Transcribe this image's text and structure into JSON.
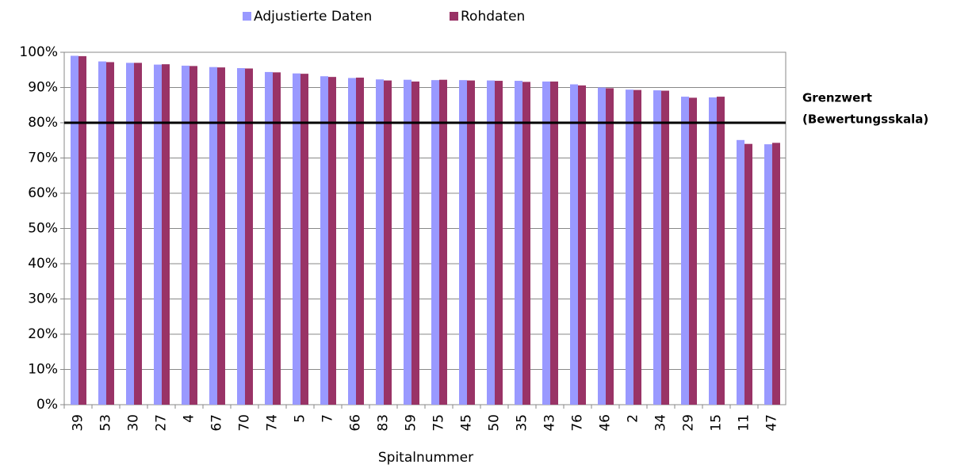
{
  "chart_data": {
    "type": "bar",
    "x_label": "Spitalnummer",
    "categories": [
      "39",
      "53",
      "30",
      "27",
      "4",
      "67",
      "70",
      "74",
      "5",
      "7",
      "66",
      "83",
      "59",
      "75",
      "45",
      "50",
      "35",
      "43",
      "76",
      "46",
      "2",
      "34",
      "29",
      "15",
      "11",
      "47"
    ],
    "series": [
      {
        "name": "Adjustierte Daten",
        "color": "#9999ff",
        "values": [
          99.0,
          97.4,
          97.0,
          96.5,
          96.2,
          95.8,
          95.5,
          94.4,
          94.0,
          93.2,
          92.7,
          92.3,
          92.2,
          92.1,
          92.1,
          92.0,
          91.9,
          91.7,
          90.9,
          90.0,
          89.4,
          89.2,
          87.4,
          87.2,
          75.1,
          73.9
        ]
      },
      {
        "name": "Rohdaten",
        "color": "#993366",
        "values": [
          98.9,
          97.2,
          97.0,
          96.6,
          96.1,
          95.7,
          95.4,
          94.3,
          93.9,
          93.0,
          92.8,
          92.0,
          91.7,
          92.2,
          92.0,
          91.9,
          91.6,
          91.7,
          90.6,
          89.8,
          89.3,
          89.1,
          87.1,
          87.4,
          74.0,
          74.3
        ]
      }
    ],
    "ylim": [
      0,
      100
    ],
    "yticks": [
      {
        "value": 0,
        "label": "0%"
      },
      {
        "value": 10,
        "label": "10%"
      },
      {
        "value": 20,
        "label": "20%"
      },
      {
        "value": 30,
        "label": "30%"
      },
      {
        "value": 40,
        "label": "40%"
      },
      {
        "value": 50,
        "label": "50%"
      },
      {
        "value": 60,
        "label": "60%"
      },
      {
        "value": 70,
        "label": "70%"
      },
      {
        "value": 80,
        "label": "80%"
      },
      {
        "value": 90,
        "label": "90%"
      },
      {
        "value": 100,
        "label": "100%"
      }
    ],
    "grid": true,
    "legend": "top",
    "reference_line": {
      "value": 80,
      "color": "#000000",
      "label_lines": [
        "Grenzwert",
        "(Bewertungsskala)"
      ]
    }
  }
}
